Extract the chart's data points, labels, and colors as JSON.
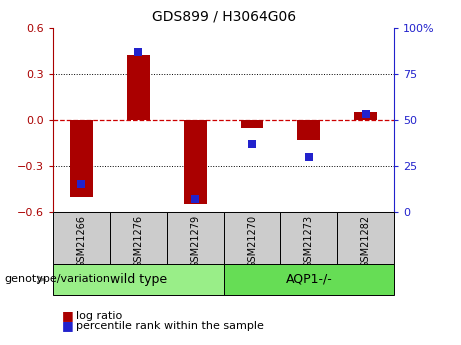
{
  "title": "GDS899 / H3064G06",
  "samples": [
    "GSM21266",
    "GSM21276",
    "GSM21279",
    "GSM21270",
    "GSM21273",
    "GSM21282"
  ],
  "log_ratio": [
    -0.5,
    0.42,
    -0.55,
    -0.05,
    -0.13,
    0.05
  ],
  "percentile_rank": [
    15,
    87,
    7,
    37,
    30,
    53
  ],
  "wild_type_indices": [
    0,
    1,
    2
  ],
  "aqp1_indices": [
    3,
    4,
    5
  ],
  "ylim_left": [
    -0.6,
    0.6
  ],
  "ylim_right": [
    0,
    100
  ],
  "yticks_left": [
    -0.6,
    -0.3,
    0,
    0.3,
    0.6
  ],
  "yticks_right": [
    0,
    25,
    50,
    75,
    100
  ],
  "ytick_labels_right": [
    "0",
    "25",
    "50",
    "75",
    "100%"
  ],
  "bar_color_red": "#aa0000",
  "marker_color_blue": "#2222cc",
  "zero_line_color": "#cc0000",
  "grid_color": "#000000",
  "wt_box_color": "#99ee88",
  "aqp1_box_color": "#66dd55",
  "sample_box_color": "#cccccc",
  "bar_width": 0.4,
  "marker_size": 6,
  "title_fontsize": 10,
  "tick_fontsize": 8,
  "sample_fontsize": 7,
  "group_fontsize": 9,
  "legend_fontsize": 8,
  "geno_fontsize": 8
}
